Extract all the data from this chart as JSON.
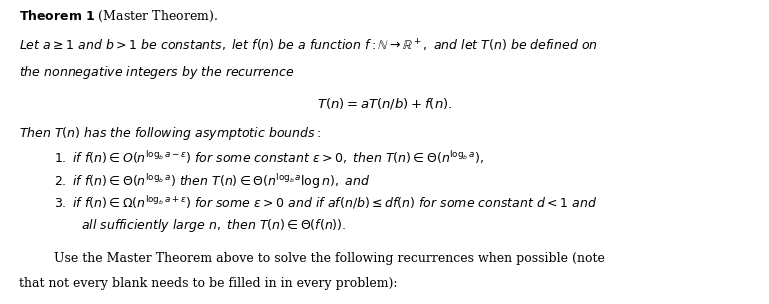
{
  "figsize": [
    7.69,
    3.04
  ],
  "dpi": 100,
  "bg_color": "#ffffff",
  "text_color": "#000000"
}
